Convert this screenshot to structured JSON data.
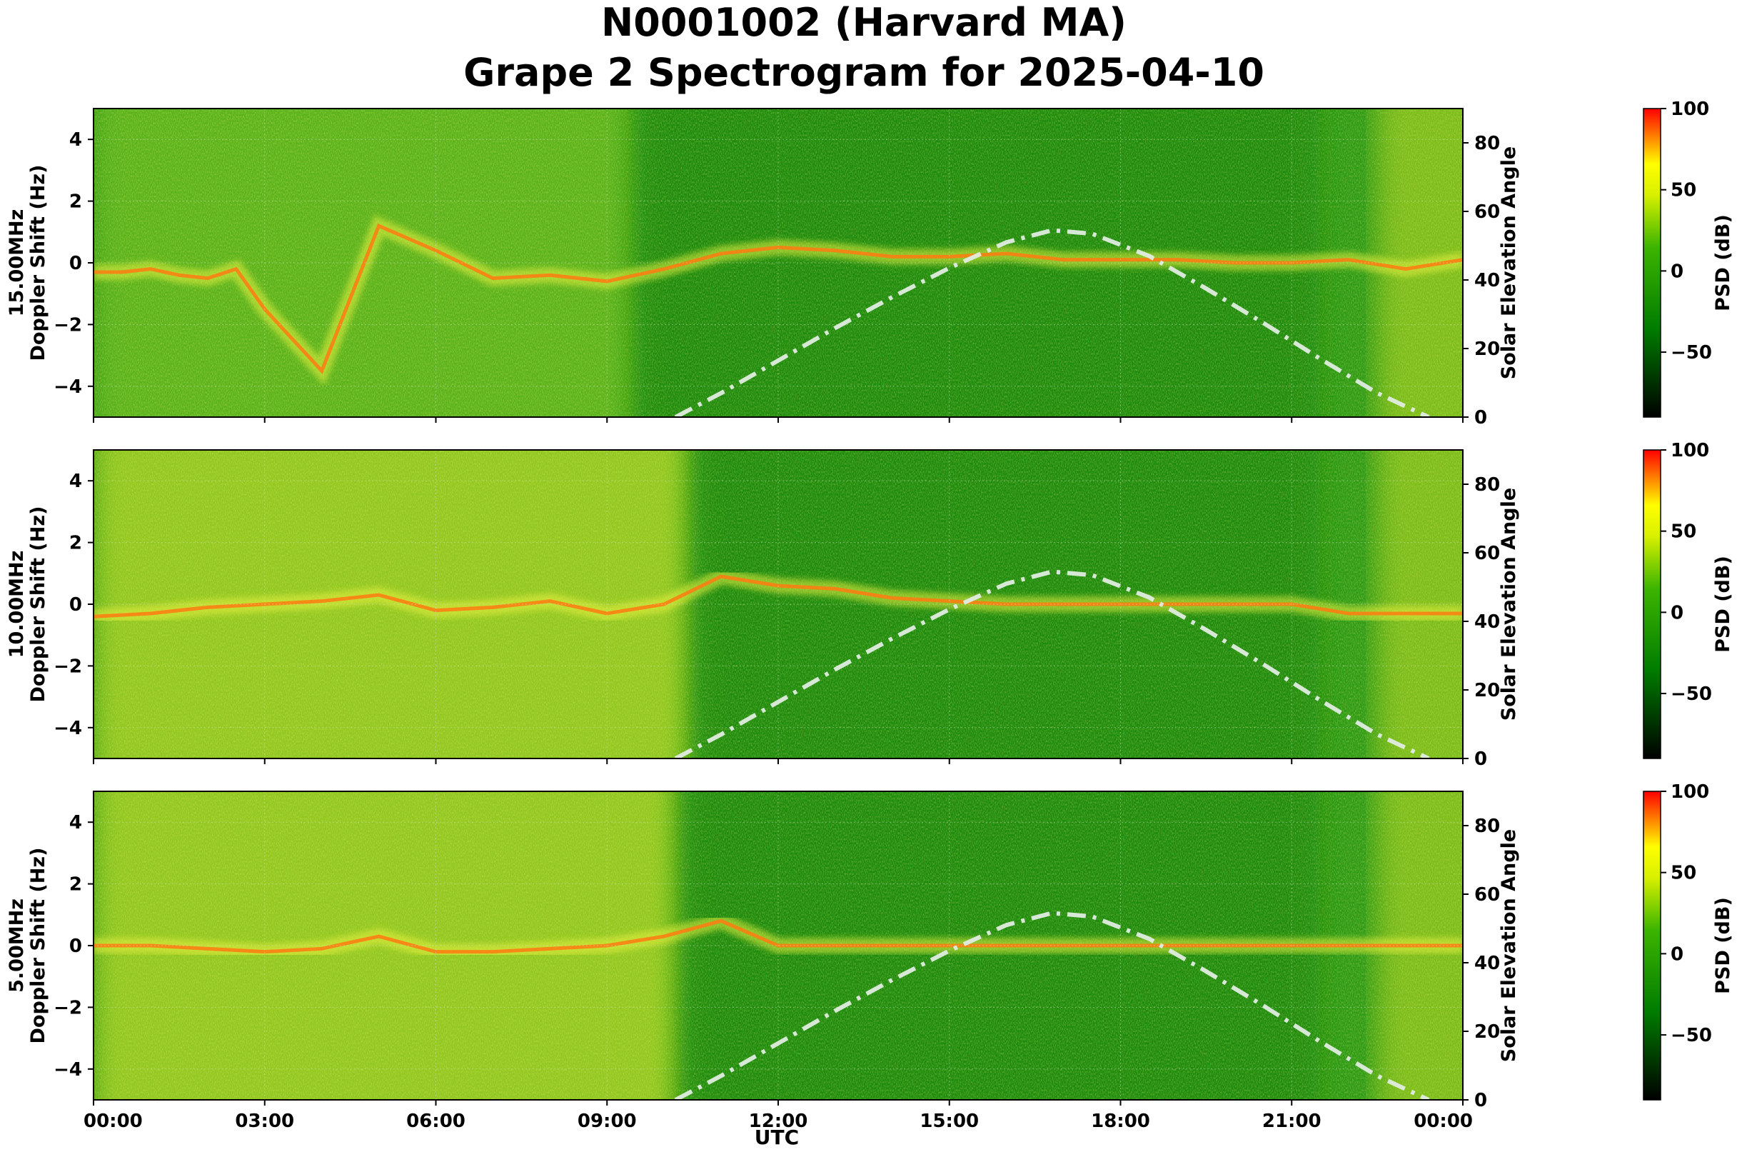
{
  "title_line1": "N0001002 (Harvard MA)",
  "title_line2": "Grape 2 Spectrogram for 2025-04-10",
  "chart_data": {
    "type": "heatmap",
    "xlabel": "UTC",
    "x_ticks": [
      "00:00",
      "03:00",
      "06:00",
      "09:00",
      "12:00",
      "15:00",
      "18:00",
      "21:00",
      "00:00"
    ],
    "x_range_hours": [
      0,
      24
    ],
    "y_range_hz": [
      -5,
      5
    ],
    "y_ticks": [
      4,
      2,
      0,
      -2,
      -4
    ],
    "y_ticks_labels": [
      "4",
      "2",
      "0",
      "−2",
      "−4"
    ],
    "right_axis": {
      "label": "Solar Elevation Angle",
      "range_deg": [
        0,
        90
      ],
      "ticks": [
        "80",
        "60",
        "40",
        "20",
        "0"
      ]
    },
    "colorbar": {
      "label": "PSD (dB)",
      "range_db": [
        -90,
        100
      ],
      "ticks": [
        "100",
        "50",
        "0",
        "−50"
      ],
      "colors": [
        "#000000",
        "#007a00",
        "#c8f000",
        "#ffff00",
        "#ff0000"
      ]
    },
    "solar_elevation_curve": {
      "style": "dash-dot",
      "color": "#e0ece0",
      "hours": [
        10.2,
        11,
        12,
        13,
        14,
        15,
        16,
        16.8,
        17.5,
        18.5,
        19.5,
        20.5,
        21.5,
        22.5,
        23.4
      ],
      "degrees": [
        0,
        7,
        16.5,
        26,
        35,
        43.5,
        51,
        54.5,
        53.5,
        47,
        37.5,
        27.5,
        17,
        7,
        0
      ]
    },
    "panels": [
      {
        "ylabel_line1": "15.00MHz",
        "ylabel_line2": "Doppler Shift (Hz)",
        "doppler_trace_hours": [
          0,
          0.5,
          1,
          1.5,
          2,
          2.5,
          3,
          4,
          5,
          6,
          7,
          8,
          9,
          10,
          11,
          12,
          13,
          14,
          15,
          16,
          17,
          18,
          19,
          20,
          21,
          22,
          23,
          24
        ],
        "doppler_trace_hz": [
          -0.3,
          -0.3,
          -0.2,
          -0.4,
          -0.5,
          -0.2,
          -1.5,
          -3.5,
          1.2,
          0.4,
          -0.5,
          -0.4,
          -0.6,
          -0.2,
          0.3,
          0.5,
          0.4,
          0.2,
          0.2,
          0.3,
          0.1,
          0.1,
          0.1,
          0.0,
          0.0,
          0.1,
          -0.2,
          0.1
        ]
      },
      {
        "ylabel_line1": "10.00MHz",
        "ylabel_line2": "Doppler Shift (Hz)",
        "doppler_trace_hours": [
          0,
          1,
          2,
          3,
          4,
          5,
          6,
          7,
          8,
          9,
          10,
          11,
          12,
          13,
          14,
          15,
          16,
          17,
          18,
          19,
          20,
          21,
          22,
          23,
          24
        ],
        "doppler_trace_hz": [
          -0.4,
          -0.3,
          -0.1,
          0.0,
          0.1,
          0.3,
          -0.2,
          -0.1,
          0.1,
          -0.3,
          0.0,
          0.9,
          0.6,
          0.5,
          0.2,
          0.1,
          0.0,
          0.0,
          0.0,
          0.0,
          0.0,
          0.0,
          -0.3,
          -0.3,
          -0.3
        ]
      },
      {
        "ylabel_line1": "5.00MHz",
        "ylabel_line2": "Doppler Shift (Hz)",
        "doppler_trace_hours": [
          0,
          1,
          2,
          3,
          4,
          5,
          6,
          7,
          8,
          9,
          10,
          11,
          12,
          13,
          14,
          15,
          16,
          17,
          18,
          19,
          20,
          21,
          22,
          23,
          24
        ],
        "doppler_trace_hz": [
          0.0,
          0.0,
          -0.1,
          -0.2,
          -0.1,
          0.3,
          -0.2,
          -0.2,
          -0.1,
          0.0,
          0.3,
          0.8,
          0.0,
          0.0,
          0.0,
          0.0,
          0.0,
          0.0,
          0.0,
          0.0,
          0.0,
          0.0,
          0.0,
          0.0,
          0.0
        ]
      }
    ]
  }
}
